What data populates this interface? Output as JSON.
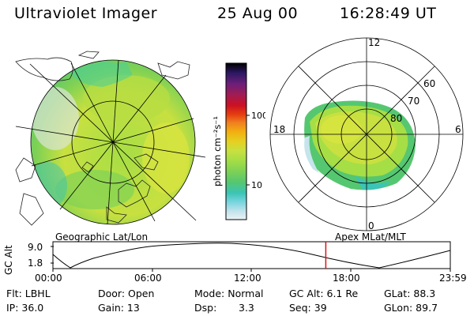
{
  "header": {
    "instrument": "Ultraviolet Imager",
    "date": "25 Aug 00",
    "time": "16:28:49 UT"
  },
  "colorbar": {
    "unit_label": "photon cm⁻²s⁻¹",
    "ticks": [
      "100",
      "10"
    ],
    "colors_top_to_bottom": [
      "#000000",
      "#2a1760",
      "#6a1f7a",
      "#a01c55",
      "#cc1122",
      "#e64010",
      "#f08020",
      "#f2b010",
      "#e6d020",
      "#c8e040",
      "#a6de45",
      "#7fd155",
      "#55c770",
      "#3cc4b5",
      "#7ad5e0",
      "#c6e4ec",
      "#ebf3f4"
    ]
  },
  "left_panel": {
    "caption": "Geographic Lat/Lon"
  },
  "right_panel": {
    "caption": "Apex MLat/MLT",
    "mlt_labels": [
      "12",
      "18",
      "6",
      "0"
    ],
    "lat_labels": [
      "60",
      "70",
      "80"
    ]
  },
  "altitude_plot": {
    "ylabel": "GC Alt",
    "yticks": [
      "9.0",
      "1.8"
    ],
    "xticks": [
      "00:00",
      "06:00",
      "12:00",
      "18:00",
      "23:59"
    ],
    "current_marker_time": "16:28"
  },
  "footer": {
    "flt": "Flt: LBHL",
    "door": "Door: Open",
    "mode": "Mode: Normal",
    "gc_alt": "GC Alt: 6.1 Re",
    "glat": "GLat:  88.3",
    "ip": "IP: 36.0",
    "gain": "Gain: 13",
    "dsp_label": "Dsp:",
    "dsp_value": "3.3",
    "seq": "Seq: 39",
    "glon": "GLon:  89.7"
  }
}
